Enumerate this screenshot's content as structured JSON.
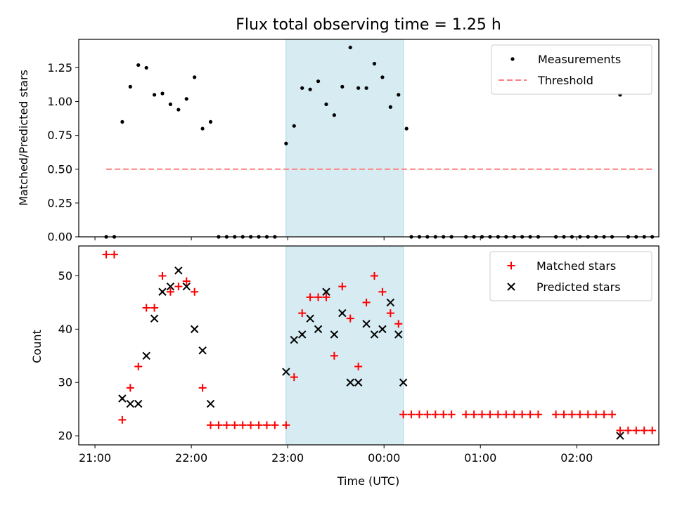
{
  "chart_data": [
    {
      "type": "scatter",
      "title": "Flux total observing time = 1.25 h",
      "ylabel": "Matched/Predicted stars",
      "xlabel": "",
      "ylim": [
        0,
        1.46
      ],
      "y_ticks": [
        0.0,
        0.25,
        0.5,
        0.75,
        1.0,
        1.25
      ],
      "y_tick_labels": [
        "0.00",
        "0.25",
        "0.50",
        "0.75",
        "1.00",
        "1.25"
      ],
      "shaded_x_range": [
        "22:59",
        "00:12"
      ],
      "legend_position": "top-right",
      "series": [
        {
          "name": "Measurements",
          "kind": "points",
          "color": "#000000",
          "points": [
            [
              "21:07",
              0.0
            ],
            [
              "21:12",
              0.0
            ],
            [
              "21:17",
              0.85
            ],
            [
              "21:22",
              1.11
            ],
            [
              "21:27",
              1.27
            ],
            [
              "21:32",
              1.25
            ],
            [
              "21:37",
              1.05
            ],
            [
              "21:42",
              1.06
            ],
            [
              "21:47",
              0.98
            ],
            [
              "21:52",
              0.94
            ],
            [
              "21:57",
              1.02
            ],
            [
              "22:02",
              1.18
            ],
            [
              "22:07",
              0.8
            ],
            [
              "22:12",
              0.85
            ],
            [
              "22:17",
              0.0
            ],
            [
              "22:22",
              0.0
            ],
            [
              "22:27",
              0.0
            ],
            [
              "22:32",
              0.0
            ],
            [
              "22:37",
              0.0
            ],
            [
              "22:42",
              0.0
            ],
            [
              "22:47",
              0.0
            ],
            [
              "22:52",
              0.0
            ],
            [
              "22:59",
              0.69
            ],
            [
              "23:04",
              0.82
            ],
            [
              "23:09",
              1.1
            ],
            [
              "23:14",
              1.09
            ],
            [
              "23:19",
              1.15
            ],
            [
              "23:24",
              0.98
            ],
            [
              "23:29",
              0.9
            ],
            [
              "23:34",
              1.11
            ],
            [
              "23:39",
              1.4
            ],
            [
              "23:44",
              1.1
            ],
            [
              "23:49",
              1.1
            ],
            [
              "23:54",
              1.28
            ],
            [
              "23:59",
              1.18
            ],
            [
              "00:04",
              0.96
            ],
            [
              "00:09",
              1.05
            ],
            [
              "00:14",
              0.8
            ],
            [
              "00:17",
              0.0
            ],
            [
              "00:22",
              0.0
            ],
            [
              "00:27",
              0.0
            ],
            [
              "00:32",
              0.0
            ],
            [
              "00:37",
              0.0
            ],
            [
              "00:42",
              0.0
            ],
            [
              "00:51",
              0.0
            ],
            [
              "00:56",
              0.0
            ],
            [
              "01:01",
              0.0
            ],
            [
              "01:06",
              0.0
            ],
            [
              "01:11",
              0.0
            ],
            [
              "01:16",
              0.0
            ],
            [
              "01:21",
              0.0
            ],
            [
              "01:26",
              0.0
            ],
            [
              "01:31",
              0.0
            ],
            [
              "01:36",
              0.0
            ],
            [
              "01:47",
              0.0
            ],
            [
              "01:52",
              0.0
            ],
            [
              "01:57",
              0.0
            ],
            [
              "02:02",
              0.0
            ],
            [
              "02:07",
              0.0
            ],
            [
              "02:12",
              0.0
            ],
            [
              "02:17",
              0.0
            ],
            [
              "02:22",
              0.0
            ],
            [
              "02:27",
              1.05
            ],
            [
              "02:32",
              0.0
            ],
            [
              "02:37",
              0.0
            ],
            [
              "02:42",
              0.0
            ],
            [
              "02:47",
              0.0
            ]
          ]
        },
        {
          "name": "Threshold",
          "kind": "dashed-line",
          "color": "#ff7f7f",
          "points": [
            [
              "21:07",
              0.5
            ],
            [
              "02:47",
              0.5
            ]
          ]
        }
      ]
    },
    {
      "type": "scatter",
      "title": "",
      "ylabel": "Count",
      "xlabel": "Time (UTC)",
      "ylim": [
        18.3,
        55.6
      ],
      "y_ticks": [
        20,
        30,
        40,
        50
      ],
      "y_tick_labels": [
        "20",
        "30",
        "40",
        "50"
      ],
      "x_ticks": [
        "21:00",
        "22:00",
        "23:00",
        "00:00",
        "01:00",
        "02:00"
      ],
      "shaded_x_range": [
        "22:59",
        "00:12"
      ],
      "legend_position": "top-right",
      "series": [
        {
          "name": "Matched stars",
          "marker": "plus",
          "color": "#ff0000",
          "points": [
            [
              "21:07",
              54
            ],
            [
              "21:12",
              54
            ],
            [
              "21:17",
              23
            ],
            [
              "21:22",
              29
            ],
            [
              "21:27",
              33
            ],
            [
              "21:32",
              44
            ],
            [
              "21:37",
              44
            ],
            [
              "21:42",
              50
            ],
            [
              "21:47",
              47
            ],
            [
              "21:52",
              48
            ],
            [
              "21:57",
              49
            ],
            [
              "22:02",
              47
            ],
            [
              "22:07",
              29
            ],
            [
              "22:12",
              22
            ],
            [
              "22:17",
              22
            ],
            [
              "22:22",
              22
            ],
            [
              "22:27",
              22
            ],
            [
              "22:32",
              22
            ],
            [
              "22:37",
              22
            ],
            [
              "22:42",
              22
            ],
            [
              "22:47",
              22
            ],
            [
              "22:52",
              22
            ],
            [
              "22:59",
              22
            ],
            [
              "23:04",
              31
            ],
            [
              "23:09",
              43
            ],
            [
              "23:14",
              46
            ],
            [
              "23:19",
              46
            ],
            [
              "23:24",
              46
            ],
            [
              "23:29",
              35
            ],
            [
              "23:34",
              48
            ],
            [
              "23:39",
              42
            ],
            [
              "23:44",
              33
            ],
            [
              "23:49",
              45
            ],
            [
              "23:54",
              50
            ],
            [
              "23:59",
              47
            ],
            [
              "00:04",
              43
            ],
            [
              "00:09",
              41
            ],
            [
              "00:12",
              24
            ],
            [
              "00:17",
              24
            ],
            [
              "00:22",
              24
            ],
            [
              "00:27",
              24
            ],
            [
              "00:32",
              24
            ],
            [
              "00:37",
              24
            ],
            [
              "00:42",
              24
            ],
            [
              "00:51",
              24
            ],
            [
              "00:56",
              24
            ],
            [
              "01:01",
              24
            ],
            [
              "01:06",
              24
            ],
            [
              "01:11",
              24
            ],
            [
              "01:16",
              24
            ],
            [
              "01:21",
              24
            ],
            [
              "01:26",
              24
            ],
            [
              "01:31",
              24
            ],
            [
              "01:36",
              24
            ],
            [
              "01:47",
              24
            ],
            [
              "01:52",
              24
            ],
            [
              "01:57",
              24
            ],
            [
              "02:02",
              24
            ],
            [
              "02:07",
              24
            ],
            [
              "02:12",
              24
            ],
            [
              "02:17",
              24
            ],
            [
              "02:22",
              24
            ],
            [
              "02:27",
              21
            ],
            [
              "02:32",
              21
            ],
            [
              "02:37",
              21
            ],
            [
              "02:42",
              21
            ],
            [
              "02:47",
              21
            ]
          ]
        },
        {
          "name": "Predicted stars",
          "marker": "x",
          "color": "#000000",
          "points": [
            [
              "21:17",
              27
            ],
            [
              "21:22",
              26
            ],
            [
              "21:27",
              26
            ],
            [
              "21:32",
              35
            ],
            [
              "21:37",
              42
            ],
            [
              "21:42",
              47
            ],
            [
              "21:47",
              48
            ],
            [
              "21:52",
              51
            ],
            [
              "21:57",
              48
            ],
            [
              "22:02",
              40
            ],
            [
              "22:07",
              36
            ],
            [
              "22:12",
              26
            ],
            [
              "22:59",
              32
            ],
            [
              "23:04",
              38
            ],
            [
              "23:09",
              39
            ],
            [
              "23:14",
              42
            ],
            [
              "23:19",
              40
            ],
            [
              "23:24",
              47
            ],
            [
              "23:29",
              39
            ],
            [
              "23:34",
              43
            ],
            [
              "23:39",
              30
            ],
            [
              "23:44",
              30
            ],
            [
              "23:49",
              41
            ],
            [
              "23:54",
              39
            ],
            [
              "23:59",
              40
            ],
            [
              "00:04",
              45
            ],
            [
              "00:09",
              39
            ],
            [
              "00:12",
              30
            ],
            [
              "02:27",
              20
            ]
          ]
        }
      ]
    }
  ]
}
